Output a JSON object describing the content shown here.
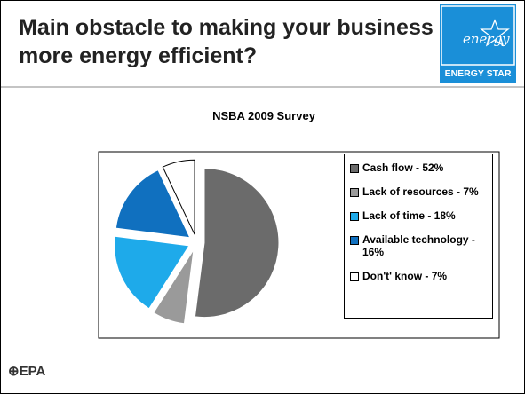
{
  "title": "Main obstacle to making your business more energy efficient?",
  "logo": {
    "script": "energy",
    "label": "ENERGY STAR"
  },
  "footer": "EPA",
  "chart_data": {
    "type": "pie",
    "title": "NSBA 2009 Survey",
    "categories": [
      "Cash flow - 52%",
      "Lack of resources - 7%",
      "Lack of time - 18%",
      "Available technology - 16%",
      "Don't' know - 7%"
    ],
    "values": [
      52,
      7,
      18,
      16,
      7
    ],
    "colors": [
      "#6b6b6b",
      "#9a9a9a",
      "#1eaaea",
      "#1070bf",
      "#ffffff"
    ]
  }
}
